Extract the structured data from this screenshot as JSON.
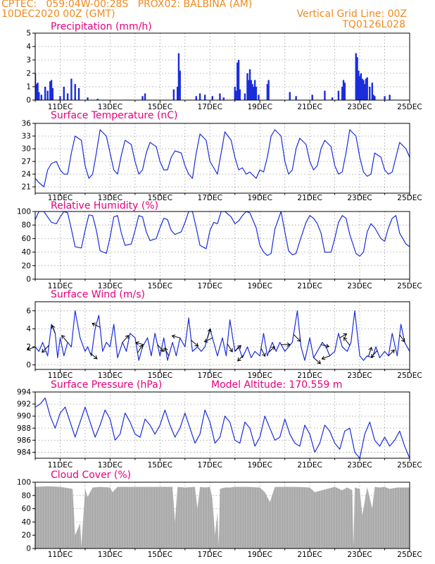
{
  "header": {
    "line1_left": "CPTEC:   059:04W-00:28S   PROX02: BALBINA (AM)",
    "line2_left": "10DEC2020 00Z (GMT)",
    "line2_right": "Vertical Grid Line: 00Z",
    "line3_right": "TQ0126L028"
  },
  "colors": {
    "header": "#f08a1e",
    "title": "#e6007e",
    "series": "#1b2ddb",
    "cloud": "#aaaaaa"
  },
  "x_tick_labels": [
    "11DEC",
    "13DEC",
    "15DEC",
    "17DEC",
    "19DEC",
    "21DEC",
    "23DEC",
    "25DEC"
  ],
  "chart_data": [
    {
      "type": "bar",
      "title": "Precipitation (mm/h)",
      "ylim": [
        0,
        5
      ],
      "yticks": [
        0,
        1,
        2,
        3,
        4,
        5
      ],
      "x_range_days": [
        10,
        25
      ],
      "values": [
        [
          10.0,
          2.0
        ],
        [
          10.05,
          1.2
        ],
        [
          10.1,
          1.3
        ],
        [
          10.15,
          0.6
        ],
        [
          10.25,
          0.4
        ],
        [
          10.4,
          1.0
        ],
        [
          10.5,
          0.7
        ],
        [
          10.6,
          1.4
        ],
        [
          10.65,
          1.5
        ],
        [
          10.7,
          0.9
        ],
        [
          11.0,
          0.3
        ],
        [
          11.15,
          1.0
        ],
        [
          11.3,
          0.5
        ],
        [
          11.45,
          1.6
        ],
        [
          11.6,
          1.2
        ],
        [
          11.75,
          0.9
        ],
        [
          12.1,
          0.2
        ],
        [
          12.5,
          0.1
        ],
        [
          14.3,
          0.3
        ],
        [
          14.4,
          0.5
        ],
        [
          15.55,
          0.8
        ],
        [
          15.7,
          1.0
        ],
        [
          15.75,
          3.5
        ],
        [
          15.8,
          2.2
        ],
        [
          16.45,
          0.3
        ],
        [
          16.6,
          0.5
        ],
        [
          16.8,
          0.4
        ],
        [
          17.1,
          0.3
        ],
        [
          17.4,
          0.5
        ],
        [
          17.55,
          0.2
        ],
        [
          18.0,
          1.0
        ],
        [
          18.05,
          0.7
        ],
        [
          18.1,
          2.8
        ],
        [
          18.15,
          3.0
        ],
        [
          18.2,
          0.8
        ],
        [
          18.4,
          0.5
        ],
        [
          18.5,
          2.0
        ],
        [
          18.55,
          1.5
        ],
        [
          18.6,
          2.3
        ],
        [
          18.65,
          1.5
        ],
        [
          18.7,
          1.2
        ],
        [
          18.75,
          1.0
        ],
        [
          18.8,
          1.5
        ],
        [
          18.85,
          1.0
        ],
        [
          18.95,
          0.4
        ],
        [
          19.3,
          1.2
        ],
        [
          19.35,
          1.5
        ],
        [
          20.2,
          0.6
        ],
        [
          20.45,
          0.3
        ],
        [
          21.1,
          0.4
        ],
        [
          21.6,
          0.7
        ],
        [
          21.9,
          0.2
        ],
        [
          22.15,
          0.7
        ],
        [
          22.3,
          1.0
        ],
        [
          22.35,
          1.5
        ],
        [
          22.4,
          1.3
        ],
        [
          22.85,
          3.5
        ],
        [
          22.9,
          3.2
        ],
        [
          22.95,
          2.2
        ],
        [
          23.0,
          1.8
        ],
        [
          23.05,
          2.0
        ],
        [
          23.1,
          1.6
        ],
        [
          23.15,
          1.5
        ],
        [
          23.2,
          1.2
        ],
        [
          23.25,
          1.6
        ],
        [
          23.3,
          1.7
        ],
        [
          23.4,
          1.0
        ],
        [
          23.5,
          1.3
        ],
        [
          23.55,
          0.4
        ],
        [
          23.6,
          0.3
        ],
        [
          24.0,
          0.3
        ],
        [
          24.2,
          0.4
        ]
      ]
    },
    {
      "type": "line",
      "title": "Surface Temperature (nC)",
      "ylim": [
        19.5,
        36
      ],
      "yticks": [
        21,
        24,
        27,
        30,
        33,
        36
      ],
      "x_range_days": [
        10,
        25
      ],
      "x": [
        10.0,
        10.15,
        10.35,
        10.5,
        10.65,
        10.85,
        11.0,
        11.15,
        11.3,
        11.45,
        11.6,
        11.85,
        12.0,
        12.15,
        12.3,
        12.45,
        12.6,
        12.85,
        13.0,
        13.15,
        13.3,
        13.45,
        13.6,
        13.85,
        14.0,
        14.15,
        14.3,
        14.45,
        14.6,
        14.85,
        15.0,
        15.15,
        15.3,
        15.45,
        15.6,
        15.85,
        16.0,
        16.15,
        16.3,
        16.45,
        16.6,
        16.85,
        17.0,
        17.15,
        17.3,
        17.45,
        17.6,
        17.85,
        18.0,
        18.15,
        18.3,
        18.45,
        18.6,
        18.85,
        19.0,
        19.15,
        19.3,
        19.45,
        19.6,
        19.85,
        20.0,
        20.15,
        20.3,
        20.45,
        20.6,
        20.85,
        21.0,
        21.15,
        21.3,
        21.45,
        21.6,
        21.85,
        22.0,
        22.15,
        22.3,
        22.45,
        22.6,
        22.85,
        23.0,
        23.15,
        23.3,
        23.45,
        23.6,
        23.85,
        24.0,
        24.15,
        24.3,
        24.45,
        24.6,
        24.85,
        25.0
      ],
      "y": [
        23.0,
        22.0,
        21.0,
        25.0,
        26.5,
        27.0,
        25.0,
        24.0,
        24.0,
        29.0,
        33.0,
        32.0,
        26.0,
        23.0,
        24.0,
        29.0,
        34.5,
        33.0,
        29.0,
        25.0,
        24.0,
        28.5,
        32.0,
        31.0,
        27.0,
        24.0,
        25.0,
        29.0,
        31.5,
        30.5,
        27.0,
        25.0,
        25.0,
        28.0,
        29.5,
        29.0,
        26.0,
        24.0,
        23.0,
        29.0,
        33.5,
        32.0,
        27.0,
        25.5,
        24.0,
        29.0,
        34.0,
        32.0,
        28.0,
        25.0,
        25.5,
        24.0,
        24.5,
        23.0,
        25.0,
        24.5,
        28.0,
        33.0,
        34.5,
        33.0,
        27.0,
        24.0,
        25.0,
        30.0,
        32.5,
        31.0,
        27.0,
        25.0,
        26.0,
        30.0,
        32.0,
        30.5,
        26.0,
        24.0,
        24.5,
        29.0,
        34.5,
        33.0,
        28.0,
        24.5,
        23.5,
        24.0,
        29.0,
        28.0,
        25.0,
        24.0,
        24.5,
        28.0,
        31.5,
        30.0,
        28.0
      ]
    },
    {
      "type": "line",
      "title": "Relative Humidity (%)",
      "ylim": [
        0,
        100
      ],
      "yticks": [
        0,
        20,
        40,
        60,
        80,
        100
      ],
      "x_range_days": [
        10,
        25
      ],
      "x": [
        10.0,
        10.15,
        10.35,
        10.5,
        10.65,
        10.85,
        11.0,
        11.15,
        11.3,
        11.45,
        11.6,
        11.85,
        12.0,
        12.15,
        12.3,
        12.45,
        12.6,
        12.85,
        13.0,
        13.15,
        13.3,
        13.45,
        13.6,
        13.85,
        14.0,
        14.15,
        14.3,
        14.45,
        14.6,
        14.85,
        15.0,
        15.15,
        15.3,
        15.45,
        15.6,
        15.85,
        16.0,
        16.15,
        16.3,
        16.45,
        16.6,
        16.85,
        17.0,
        17.15,
        17.3,
        17.45,
        17.6,
        17.85,
        18.0,
        18.15,
        18.3,
        18.45,
        18.6,
        18.85,
        19.0,
        19.15,
        19.3,
        19.45,
        19.6,
        19.85,
        20.0,
        20.15,
        20.3,
        20.45,
        20.6,
        20.85,
        21.0,
        21.15,
        21.3,
        21.45,
        21.6,
        21.85,
        22.0,
        22.15,
        22.3,
        22.45,
        22.6,
        22.85,
        23.0,
        23.15,
        23.3,
        23.45,
        23.6,
        23.85,
        24.0,
        24.15,
        24.3,
        24.45,
        24.6,
        24.85,
        25.0
      ],
      "y": [
        88.0,
        100.0,
        100.0,
        92.0,
        84.0,
        82.0,
        92.0,
        100.0,
        98.0,
        74.0,
        48.0,
        46.0,
        72.0,
        95.0,
        94.0,
        72.0,
        42.0,
        38.0,
        62.0,
        92.0,
        94.0,
        68.0,
        50.0,
        52.0,
        72.0,
        94.0,
        92.0,
        70.0,
        57.0,
        60.0,
        76.0,
        90.0,
        88.0,
        72.0,
        66.0,
        70.0,
        84.0,
        100.0,
        100.0,
        76.0,
        50.0,
        45.0,
        72.0,
        84.0,
        82.0,
        100.0,
        100.0,
        92.0,
        82.0,
        86.0,
        94.0,
        100.0,
        98.0,
        76.0,
        50.0,
        40.0,
        35.0,
        38.0,
        74.0,
        100.0,
        70.0,
        42.0,
        36.0,
        38.0,
        56.0,
        84.0,
        94.0,
        90.0,
        82.0,
        68.0,
        40.0,
        40.0,
        60.0,
        84.0,
        94.0,
        90.0,
        66.0,
        38.0,
        34.0,
        40.0,
        70.0,
        82.0,
        76.0,
        60.0,
        56.0,
        76.0,
        90.0,
        94.0,
        68.0,
        52.0,
        48.0
      ]
    },
    {
      "type": "line",
      "title": "Surface Wind (m/s)",
      "ylim": [
        -0.5,
        7
      ],
      "yticks": [
        0,
        2,
        4,
        6
      ],
      "x_range_days": [
        10,
        25
      ],
      "x": [
        10.0,
        10.15,
        10.3,
        10.5,
        10.65,
        10.8,
        10.9,
        11.0,
        11.15,
        11.3,
        11.45,
        11.6,
        11.8,
        12.0,
        12.1,
        12.25,
        12.4,
        12.55,
        12.7,
        12.85,
        13.0,
        13.15,
        13.3,
        13.5,
        13.65,
        13.8,
        14.0,
        14.15,
        14.3,
        14.5,
        14.65,
        14.8,
        15.0,
        15.15,
        15.3,
        15.5,
        15.65,
        15.8,
        16.0,
        16.15,
        16.3,
        16.5,
        16.65,
        16.8,
        17.0,
        17.15,
        17.3,
        17.5,
        17.65,
        17.8,
        18.0,
        18.15,
        18.3,
        18.5,
        18.65,
        18.8,
        19.0,
        19.15,
        19.3,
        19.5,
        19.65,
        19.8,
        20.0,
        20.15,
        20.3,
        20.5,
        20.65,
        20.8,
        21.0,
        21.15,
        21.3,
        21.5,
        21.65,
        21.8,
        22.0,
        22.15,
        22.3,
        22.5,
        22.65,
        22.8,
        23.0,
        23.15,
        23.3,
        23.5,
        23.65,
        23.8,
        24.0,
        24.15,
        24.3,
        24.5,
        24.65,
        24.8,
        25.0
      ],
      "y": [
        2.0,
        1.5,
        2.5,
        1.0,
        4.5,
        3.5,
        0.8,
        3.0,
        1.0,
        2.5,
        2.0,
        6.0,
        3.0,
        1.5,
        2.0,
        1.0,
        4.0,
        5.5,
        1.5,
        2.5,
        2.0,
        4.5,
        0.8,
        2.5,
        1.5,
        3.5,
        3.0,
        0.5,
        2.0,
        3.0,
        1.0,
        3.5,
        1.0,
        3.0,
        0.5,
        2.5,
        1.0,
        3.0,
        2.0,
        5.2,
        1.5,
        2.0,
        1.5,
        2.0,
        4.0,
        2.5,
        1.0,
        3.0,
        1.0,
        5.0,
        1.5,
        2.0,
        0.8,
        2.0,
        0.8,
        1.5,
        1.0,
        3.5,
        1.0,
        2.5,
        1.5,
        2.5,
        1.5,
        2.0,
        2.5,
        6.0,
        2.0,
        0.5,
        3.0,
        0.8,
        1.5,
        2.5,
        2.0,
        1.0,
        1.5,
        3.5,
        2.0,
        1.5,
        2.5,
        6.0,
        1.0,
        0.5,
        1.0,
        0.8,
        2.0,
        0.8,
        1.5,
        1.0,
        3.5,
        1.0,
        4.5,
        2.5,
        1.5
      ],
      "vectors": [
        [
          10.0,
          -0.8,
          -0.3
        ],
        [
          10.55,
          -0.7,
          -0.7
        ],
        [
          10.8,
          -0.3,
          0.8
        ],
        [
          11.3,
          -0.6,
          0.7
        ],
        [
          12.2,
          0.7,
          -0.6
        ],
        [
          12.6,
          -0.8,
          0.4
        ],
        [
          13.5,
          0.6,
          0.7
        ],
        [
          14.1,
          0.5,
          0.8
        ],
        [
          14.35,
          -0.8,
          0.2
        ],
        [
          14.9,
          0.6,
          -0.7
        ],
        [
          15.35,
          -0.4,
          0.8
        ],
        [
          15.8,
          -0.8,
          0.2
        ],
        [
          16.25,
          0.7,
          -0.6
        ],
        [
          16.9,
          0.3,
          0.9
        ],
        [
          17.1,
          -0.8,
          -0.4
        ],
        [
          17.7,
          0.5,
          -0.8
        ],
        [
          18.0,
          0.6,
          0.6
        ],
        [
          18.35,
          -0.6,
          -0.6
        ],
        [
          19.05,
          0.4,
          -0.8
        ],
        [
          19.35,
          0.6,
          0.6
        ],
        [
          19.85,
          0.9,
          0.0
        ],
        [
          20.35,
          0.7,
          -0.7
        ],
        [
          21.15,
          0.7,
          -0.6
        ],
        [
          21.45,
          0.8,
          -0.2
        ],
        [
          21.8,
          -0.8,
          -0.3
        ],
        [
          22.2,
          0.7,
          0.4
        ],
        [
          22.6,
          -0.6,
          0.8
        ],
        [
          23.35,
          0.3,
          0.9
        ],
        [
          23.7,
          -0.6,
          -0.7
        ],
        [
          24.15,
          0.6,
          0.6
        ],
        [
          24.6,
          0.5,
          -0.7
        ]
      ]
    },
    {
      "type": "line",
      "title": "Surface Pressure (hPa)",
      "annotation": "Model Altitude: 170.559  m",
      "ylim": [
        983,
        994
      ],
      "yticks": [
        984,
        986,
        988,
        990,
        992,
        994
      ],
      "x_range_days": [
        10,
        25
      ],
      "x": [
        10.0,
        10.2,
        10.4,
        10.6,
        10.8,
        11.0,
        11.2,
        11.4,
        11.6,
        11.8,
        12.0,
        12.2,
        12.4,
        12.6,
        12.8,
        13.0,
        13.2,
        13.4,
        13.6,
        13.8,
        14.0,
        14.2,
        14.4,
        14.6,
        14.8,
        15.0,
        15.2,
        15.4,
        15.6,
        15.8,
        16.0,
        16.2,
        16.4,
        16.6,
        16.8,
        17.0,
        17.2,
        17.4,
        17.6,
        17.8,
        18.0,
        18.2,
        18.4,
        18.6,
        18.8,
        19.0,
        19.2,
        19.4,
        19.6,
        19.8,
        20.0,
        20.2,
        20.4,
        20.6,
        20.8,
        21.0,
        21.2,
        21.4,
        21.6,
        21.8,
        22.0,
        22.2,
        22.4,
        22.6,
        22.8,
        23.0,
        23.2,
        23.4,
        23.6,
        23.8,
        24.0,
        24.2,
        24.4,
        24.6,
        24.8,
        25.0
      ],
      "y": [
        991.5,
        992.0,
        993.0,
        990.0,
        988.0,
        990.5,
        991.5,
        989.0,
        986.5,
        989.0,
        991.5,
        989.0,
        986.5,
        988.5,
        991.0,
        989.5,
        986.0,
        987.0,
        990.5,
        989.0,
        987.0,
        986.5,
        989.5,
        988.5,
        987.0,
        988.5,
        991.0,
        988.5,
        986.5,
        988.0,
        990.5,
        988.0,
        985.5,
        987.0,
        991.0,
        989.0,
        985.5,
        986.5,
        990.0,
        989.0,
        986.0,
        985.5,
        989.0,
        988.0,
        985.0,
        986.5,
        990.0,
        988.0,
        986.0,
        986.5,
        989.5,
        987.0,
        985.5,
        985.0,
        988.5,
        987.0,
        984.0,
        985.5,
        988.5,
        987.5,
        985.5,
        984.5,
        987.5,
        988.0,
        984.0,
        983.0,
        987.0,
        989.0,
        986.0,
        985.0,
        986.5,
        985.0,
        986.0,
        987.5,
        985.0,
        983.0
      ]
    },
    {
      "type": "area",
      "title": "Cloud Cover (%)",
      "ylim": [
        0,
        100
      ],
      "yticks": [
        0,
        20,
        40,
        60,
        80,
        100
      ],
      "x_range_days": [
        10,
        25
      ],
      "x": [
        10.0,
        10.5,
        11.0,
        11.5,
        11.6,
        11.8,
        11.85,
        12.0,
        12.1,
        12.3,
        12.6,
        13.0,
        13.1,
        13.3,
        13.6,
        14.0,
        14.5,
        15.0,
        15.2,
        15.5,
        15.6,
        15.7,
        16.0,
        16.4,
        16.5,
        16.6,
        16.8,
        17.0,
        17.1,
        17.2,
        17.3,
        17.35,
        17.4,
        17.6,
        17.8,
        18.0,
        18.5,
        19.0,
        19.2,
        19.4,
        19.6,
        19.8,
        20.0,
        20.5,
        21.0,
        21.2,
        21.5,
        22.0,
        22.3,
        22.5,
        22.7,
        22.75,
        22.8,
        23.0,
        23.1,
        23.3,
        23.5,
        23.6,
        23.8,
        24.0,
        24.2,
        24.5,
        25.0
      ],
      "y": [
        93,
        94,
        93,
        90,
        20,
        38,
        3,
        90,
        78,
        92,
        93,
        92,
        85,
        93,
        93,
        93,
        93,
        93,
        93,
        93,
        40,
        93,
        92,
        93,
        60,
        93,
        92,
        93,
        75,
        20,
        55,
        3,
        90,
        92,
        92,
        93,
        93,
        92,
        85,
        70,
        93,
        93,
        93,
        93,
        92,
        85,
        88,
        93,
        88,
        92,
        88,
        5,
        92,
        90,
        50,
        93,
        60,
        93,
        92,
        93,
        90,
        92,
        92
      ]
    }
  ]
}
